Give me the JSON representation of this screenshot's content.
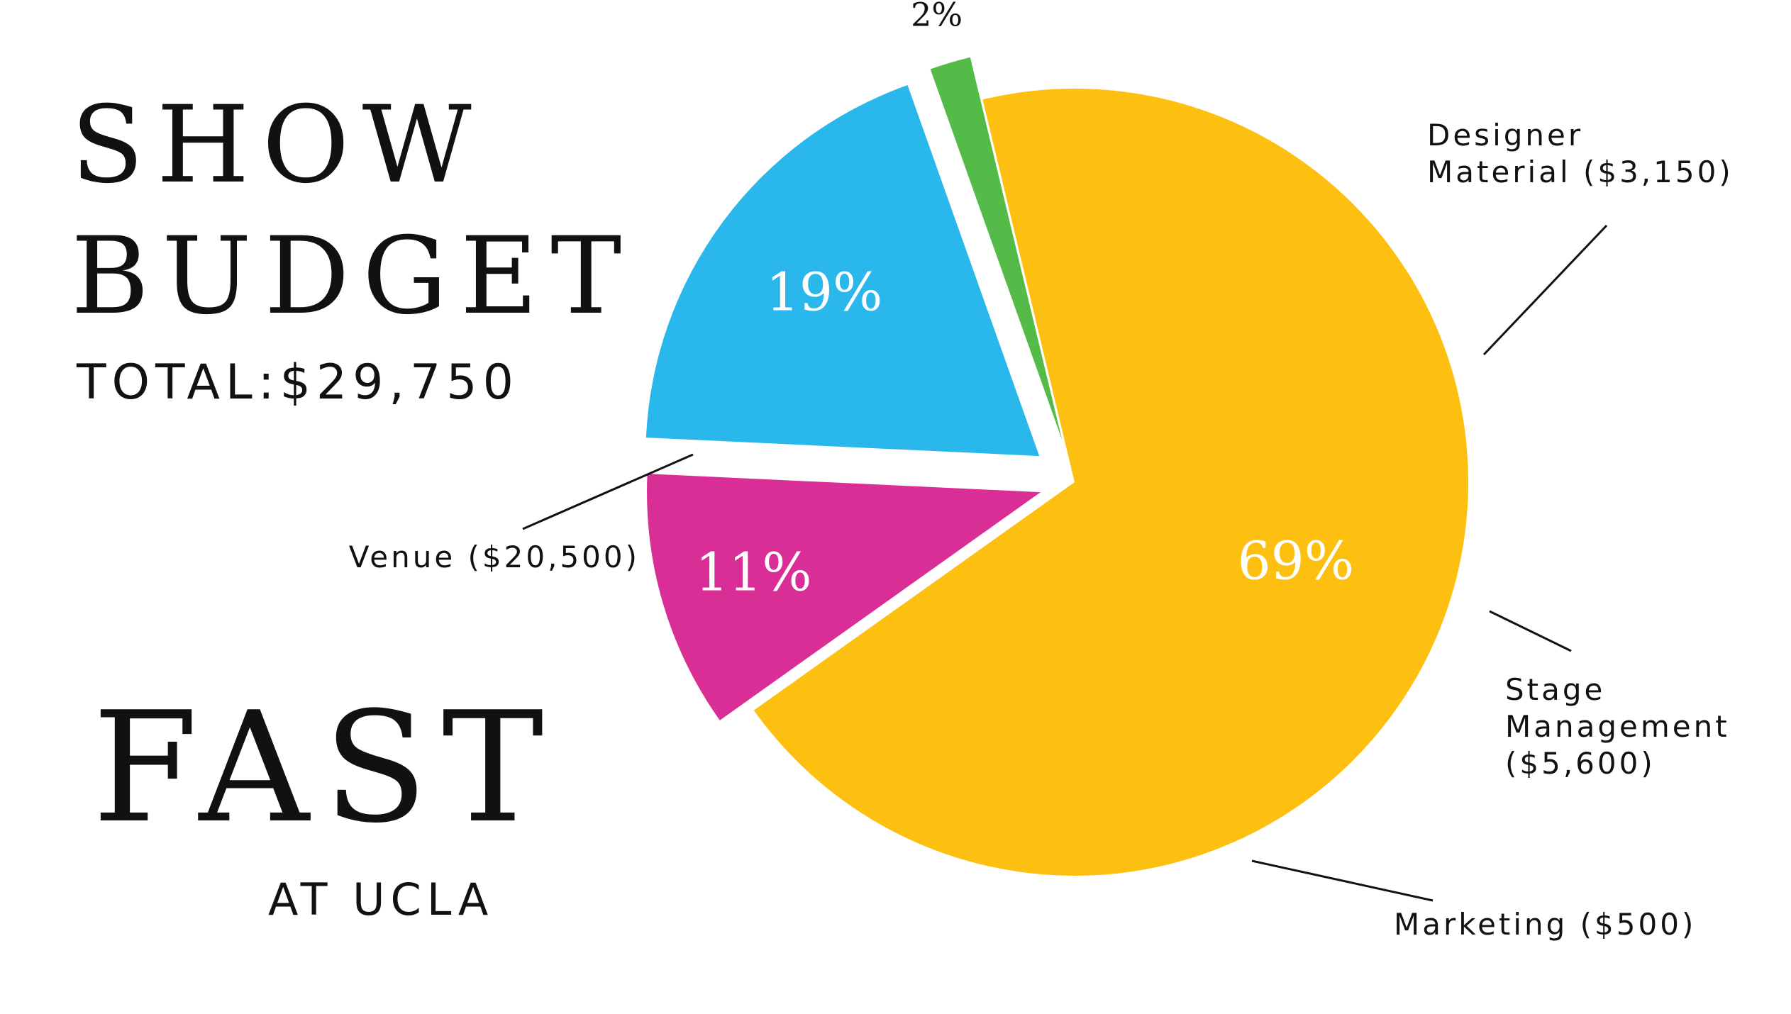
{
  "header": {
    "title_line1": "SHOW",
    "title_line2": "BUDGET",
    "total": "TOTAL:$29,750"
  },
  "footer": {
    "org_name": "FAST",
    "org_sub": "AT UCLA"
  },
  "chart_data": {
    "type": "pie",
    "title": "SHOW BUDGET",
    "subtitle": "TOTAL:$29,750",
    "slices": [
      {
        "name": "Venue",
        "label_lines": [
          "Venue ($20,500)"
        ],
        "value": 20500,
        "percent_label": "69%",
        "color": "#FDC010",
        "pct_color": "#FFFFFF"
      },
      {
        "name": "Designer Material",
        "label_lines": [
          "Designer",
          "Material ($3,150)"
        ],
        "value": 3150,
        "percent_label": "11%",
        "color": "#D92E96",
        "pct_color": "#FFFFFF"
      },
      {
        "name": "Stage Management",
        "label_lines": [
          "Stage",
          "Management",
          "($5,600)"
        ],
        "value": 5600,
        "percent_label": "19%",
        "color": "#2AB7EC",
        "pct_color": "#FFFFFF"
      },
      {
        "name": "Marketing",
        "label_lines": [
          "Marketing ($500)"
        ],
        "value": 500,
        "percent_label": "2%",
        "color": "#55BB48",
        "pct_color": "#111111"
      }
    ],
    "exploded": [
      "Designer Material",
      "Stage Management",
      "Marketing"
    ],
    "legend": "none"
  }
}
